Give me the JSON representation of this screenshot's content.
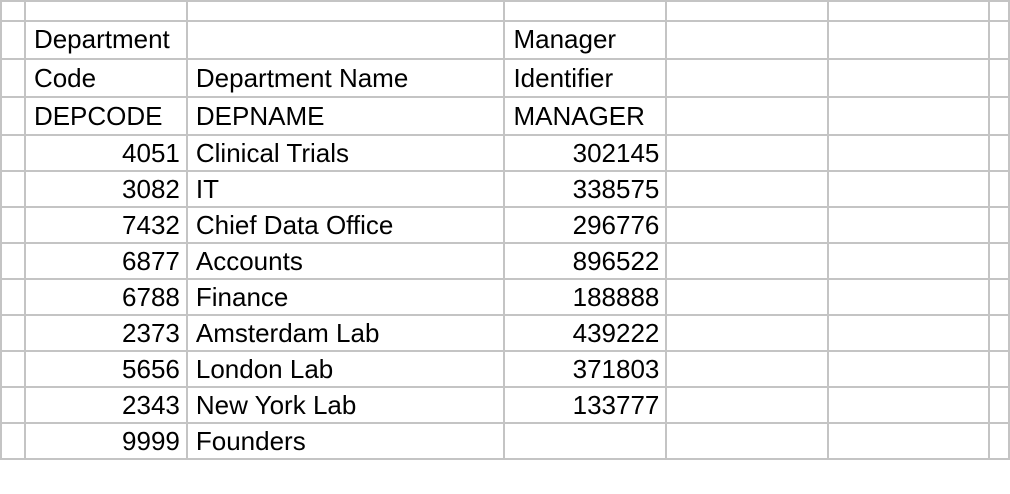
{
  "headers": {
    "row1": {
      "dept_code_a": "Department",
      "manager_a": "Manager"
    },
    "row2": {
      "dept_code_b": "Code",
      "dept_name": "Department Name",
      "manager_b": "Identifier"
    },
    "row3": {
      "dept_code_field": "DEPCODE",
      "dept_name_field": "DEPNAME",
      "manager_field": "MANAGER"
    }
  },
  "rows": [
    {
      "code": "4051",
      "name": "Clinical Trials",
      "manager": "302145"
    },
    {
      "code": "3082",
      "name": "IT",
      "manager": "338575"
    },
    {
      "code": "7432",
      "name": "Chief Data Office",
      "manager": "296776"
    },
    {
      "code": "6877",
      "name": "Accounts",
      "manager": "896522"
    },
    {
      "code": "6788",
      "name": "Finance",
      "manager": "188888"
    },
    {
      "code": "2373",
      "name": "Amsterdam Lab",
      "manager": "439222"
    },
    {
      "code": "5656",
      "name": "London Lab",
      "manager": "371803"
    },
    {
      "code": "2343",
      "name": "New York Lab",
      "manager": "133777"
    },
    {
      "code": "9999",
      "name": "Founders",
      "manager": ""
    }
  ]
}
